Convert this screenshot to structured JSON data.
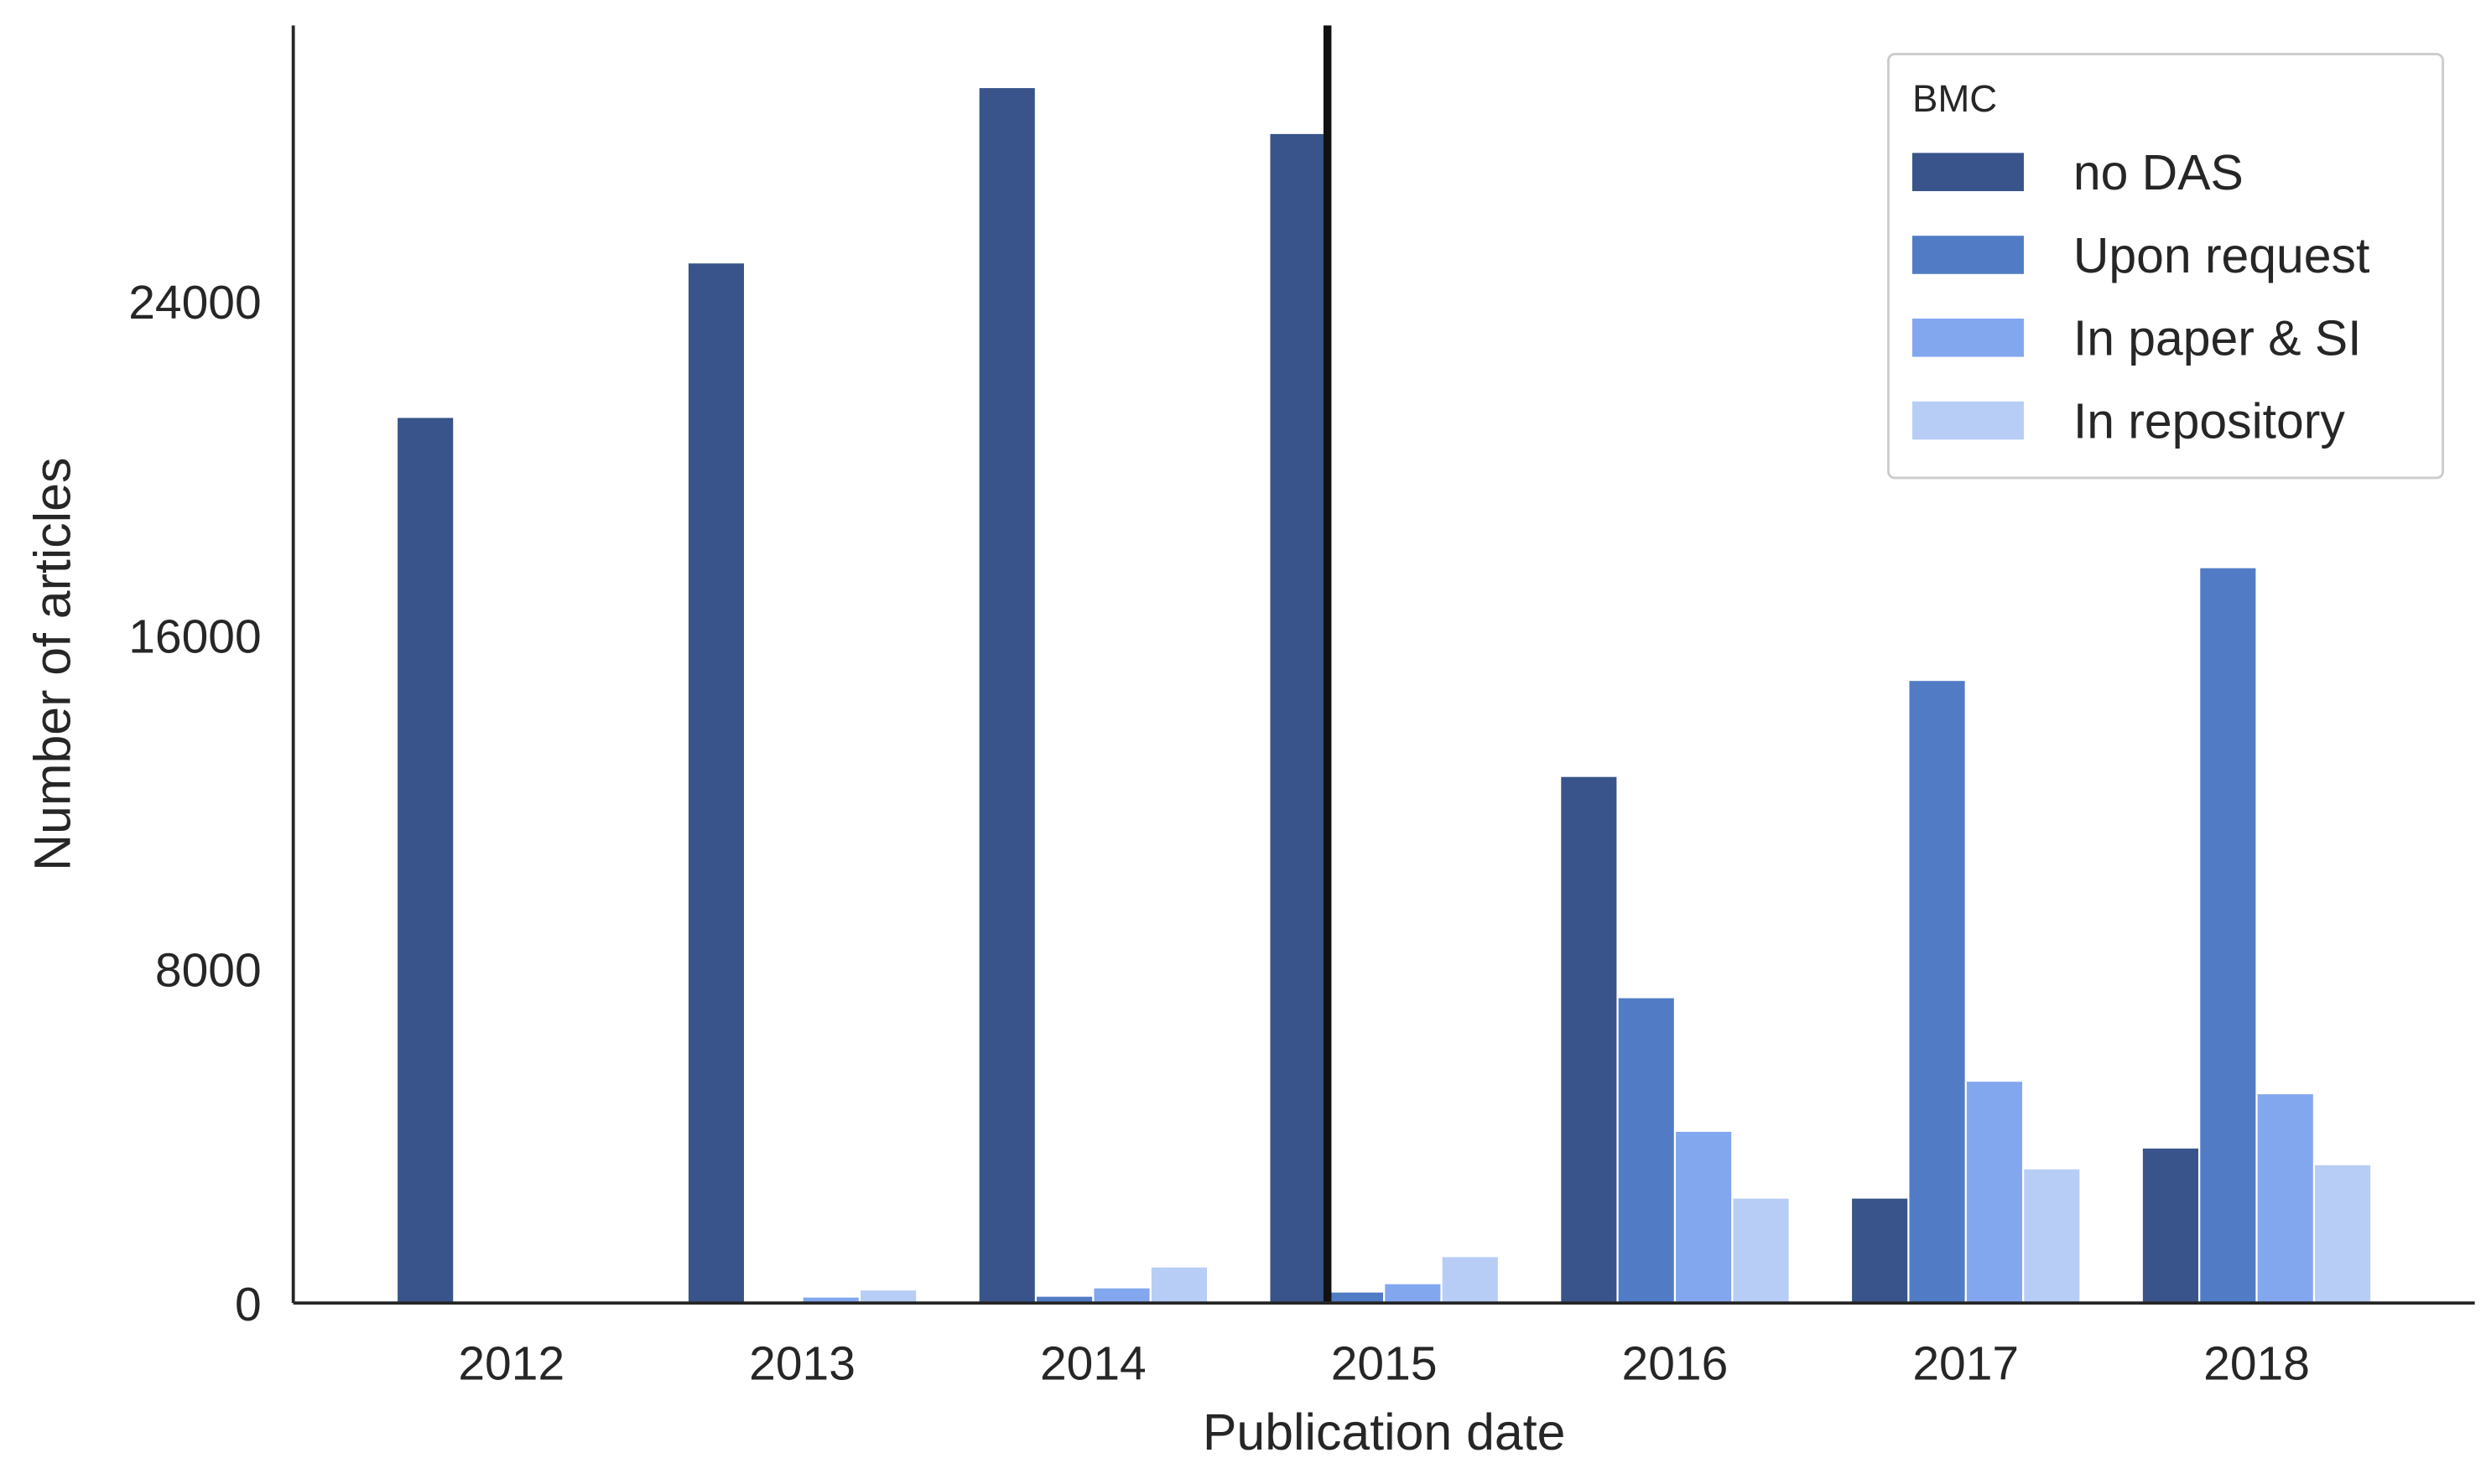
{
  "chart_data": {
    "type": "bar",
    "title": "",
    "xlabel": "Publication date",
    "ylabel": "Number of articles",
    "categories": [
      "2012",
      "2013",
      "2014",
      "2015",
      "2016",
      "2017",
      "2018"
    ],
    "ylim": [
      0,
      30600
    ],
    "yticks": [
      0,
      8000,
      16000,
      24000
    ],
    "ytick_labels": [
      "0",
      "8000",
      "16000",
      "24000"
    ],
    "series": [
      {
        "name": "no DAS",
        "color": "#38548A",
        "values": [
          21200,
          24900,
          29100,
          28000,
          12600,
          2500,
          3700
        ]
      },
      {
        "name": "Upon request",
        "color": "#517CC5",
        "values": [
          0,
          0,
          150,
          250,
          7300,
          14900,
          17600
        ]
      },
      {
        "name": "In paper & SI",
        "color": "#82A7EE",
        "values": [
          0,
          130,
          350,
          450,
          4100,
          5300,
          5000
        ]
      },
      {
        "name": "In repository",
        "color": "#B8CDF6",
        "values": [
          0,
          300,
          850,
          1100,
          2500,
          3200,
          3300
        ]
      }
    ],
    "legend": {
      "title": "BMC",
      "position": "top-right"
    },
    "annotations": [
      {
        "type": "vertical-line",
        "x_between": [
          "2014",
          "2015"
        ],
        "description": "policy change marker"
      }
    ],
    "grid": false
  }
}
